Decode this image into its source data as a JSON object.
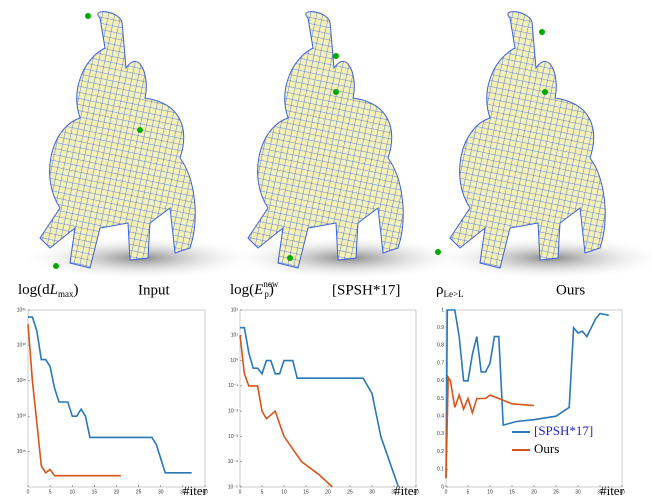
{
  "chart_data": [
    {
      "type": "line",
      "label_parts": [
        {
          "text": "log(d"
        },
        {
          "text": "L",
          "style": "italic"
        },
        {
          "text": "max",
          "style": "sub"
        },
        {
          "text": ")"
        }
      ],
      "caption": "Input",
      "caption_color": "#000000",
      "xlabel": "#iter",
      "xlim": [
        0,
        40
      ],
      "xticks": [
        0,
        5,
        10,
        15,
        20,
        25,
        30,
        35,
        40
      ],
      "log_y": true,
      "ylim": [
        10000000000.0,
        1e+35
      ],
      "yticks": [
        {
          "value": 1000000000000000.0,
          "label": "10¹⁵"
        },
        {
          "value": 1e+20,
          "label": "10²⁰"
        },
        {
          "value": 1e+25,
          "label": "10²⁵"
        },
        {
          "value": 1e+30,
          "label": "10³⁰"
        },
        {
          "value": 1e+35,
          "label": "10³⁵"
        }
      ],
      "series": [
        {
          "color": "#2a78b8",
          "x": [
            0,
            1,
            2,
            3,
            4,
            5,
            6,
            7,
            8,
            9,
            10,
            11,
            12,
            13,
            14,
            28,
            29,
            31,
            37
          ],
          "values": [
            1e+34,
            1e+34,
            1e+32,
            1e+28,
            1e+28,
            1e+27,
            1e+24,
            1e+22,
            1e+22,
            1e+22,
            1e+20,
            1e+20,
            1e+21,
            1e+20,
            1e+17,
            1e+17,
            1e+16,
            1000000000000.0,
            1000000000000.0
          ]
        },
        {
          "color": "#d9541a",
          "x": [
            0,
            1,
            2,
            3,
            4,
            5,
            6,
            21
          ],
          "values": [
            1e+33,
            1e+25,
            1e+19,
            10000000000000.0,
            1000000000000.0,
            3000000000000.0,
            400000000000.0,
            400000000000.0
          ]
        }
      ]
    },
    {
      "type": "line",
      "label_parts": [
        {
          "text": "log("
        },
        {
          "text": "E",
          "style": "italic"
        },
        {
          "text": "new",
          "style": "sup"
        },
        {
          "text": "p",
          "style": "sub"
        },
        {
          "text": ")"
        }
      ],
      "caption": "[SPSH*17]",
      "caption_color": "#1f1fcc",
      "xlabel": "#iter",
      "xlim": [
        0,
        40
      ],
      "xticks": [
        0,
        5,
        10,
        15,
        20,
        25,
        30,
        35,
        40
      ],
      "log_y": true,
      "ylim": [
        1e-05,
        100
      ],
      "yticks": [
        {
          "value": 1e-05,
          "label": "10⁻⁵"
        },
        {
          "value": 0.0001,
          "label": "10⁻⁴"
        },
        {
          "value": 0.001,
          "label": "10⁻³"
        },
        {
          "value": 0.01,
          "label": "10⁻²"
        },
        {
          "value": 0.1,
          "label": "10⁻¹"
        },
        {
          "value": 1,
          "label": "10⁰"
        },
        {
          "value": 10,
          "label": "10¹"
        },
        {
          "value": 100,
          "label": "10²"
        }
      ],
      "series": [
        {
          "color": "#2a78b8",
          "x": [
            0,
            1,
            2,
            3,
            4,
            5,
            6,
            7,
            8,
            9,
            10,
            11,
            12,
            13,
            28,
            30,
            32,
            34,
            36
          ],
          "values": [
            20,
            20,
            2,
            0.5,
            0.5,
            0.3,
            1,
            1,
            0.3,
            0.3,
            1,
            1,
            1,
            0.2,
            0.2,
            0.05,
            0.001,
            0.0001,
            1e-05
          ]
        },
        {
          "color": "#d9541a",
          "x": [
            0,
            1,
            2,
            4,
            5,
            6,
            8,
            10,
            14,
            18,
            21
          ],
          "values": [
            10,
            0.3,
            0.1,
            0.1,
            0.01,
            0.005,
            0.01,
            0.001,
            0.0001,
            3e-05,
            1e-05
          ]
        }
      ]
    },
    {
      "type": "line",
      "label_parts": [
        {
          "text": "ρ"
        },
        {
          "text": "Le>L",
          "style": "sub"
        }
      ],
      "caption": "Ours",
      "caption_color": "#000000",
      "xlabel": "#iter",
      "xlim": [
        0,
        40
      ],
      "xticks": [
        0,
        5,
        10,
        15,
        20,
        25,
        30,
        35,
        40
      ],
      "log_y": false,
      "ylim": [
        0,
        1
      ],
      "yticks": [
        0,
        0.1,
        0.2,
        0.3,
        0.4,
        0.5,
        0.6,
        0.7,
        0.8,
        0.9,
        1
      ],
      "legend": "lower right",
      "series": [
        {
          "name": "[SPSH*17]",
          "color": "#2a78b8",
          "x": [
            0,
            0.3,
            2,
            3,
            4,
            5,
            6,
            7,
            8,
            9,
            10,
            11,
            12,
            13,
            16,
            20,
            25,
            28,
            29,
            30,
            31,
            32,
            34,
            35,
            37
          ],
          "values": [
            0.05,
            1,
            1,
            0.85,
            0.6,
            0.6,
            0.75,
            0.85,
            0.65,
            0.65,
            0.7,
            0.85,
            0.85,
            0.35,
            0.37,
            0.38,
            0.4,
            0.45,
            0.9,
            0.87,
            0.88,
            0.85,
            0.95,
            0.98,
            0.97
          ]
        },
        {
          "name": "Ours",
          "color": "#d9541a",
          "x": [
            0,
            0.5,
            1,
            2,
            3,
            4,
            5,
            6,
            7,
            8,
            9,
            10,
            12,
            15,
            20
          ],
          "values": [
            0.05,
            0.62,
            0.6,
            0.45,
            0.52,
            0.44,
            0.5,
            0.42,
            0.5,
            0.5,
            0.5,
            0.52,
            0.5,
            0.47,
            0.46
          ]
        }
      ]
    }
  ]
}
